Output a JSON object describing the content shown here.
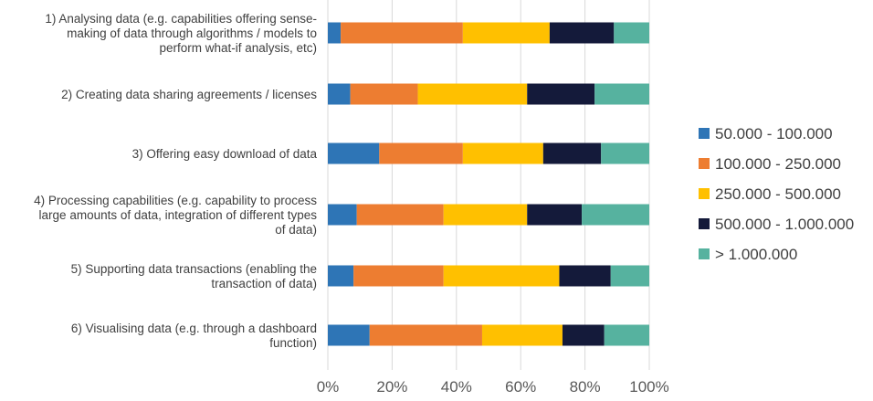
{
  "chart_data": {
    "type": "bar",
    "orientation": "horizontal",
    "stacked": "percent",
    "categories": [
      "1) Analysing data (e.g. capabilities offering sense-making of data through algorithms / models to perform what-if analysis, etc)",
      "2) Creating data sharing agreements / licenses",
      "3) Offering easy download of data",
      "4) Processing capabilities (e.g. capability to process large amounts of data, integration of different types of data)",
      "5) Supporting data transactions (enabling the transaction of data)",
      "6) Visualising data (e.g. through a dashboard function)"
    ],
    "category_lines": [
      [
        "1) Analysing data (e.g. capabilities offering sense-",
        "making of data through algorithms / models to",
        "perform what-if analysis, etc)"
      ],
      [
        "2) Creating data sharing agreements / licenses"
      ],
      [
        "3) Offering easy download of data"
      ],
      [
        "4) Processing capabilities (e.g. capability to process",
        "large amounts of data, integration of different types",
        "of data)"
      ],
      [
        "5) Supporting data transactions (enabling the",
        "transaction of data)"
      ],
      [
        "6) Visualising data (e.g. through a dashboard",
        "function)"
      ]
    ],
    "series": [
      {
        "name": "50.000 - 100.000",
        "color": "#2e75b6",
        "values": [
          4,
          7,
          16,
          9,
          8,
          13
        ]
      },
      {
        "name": "100.000 - 250.000",
        "color": "#ed7d31",
        "values": [
          38,
          21,
          26,
          27,
          28,
          35
        ]
      },
      {
        "name": "250.000 - 500.000",
        "color": "#ffc000",
        "values": [
          27,
          34,
          25,
          26,
          36,
          25
        ]
      },
      {
        "name": "500.000 - 1.000.000",
        "color": "#141a3a",
        "values": [
          20,
          21,
          18,
          17,
          16,
          13
        ]
      },
      {
        "name": "> 1.000.000",
        "color": "#56b29f",
        "values": [
          11,
          17,
          15,
          21,
          12,
          14
        ]
      }
    ],
    "xlim": [
      0,
      100
    ],
    "x_ticks": [
      "0%",
      "20%",
      "40%",
      "60%",
      "80%",
      "100%"
    ],
    "grid": "vertical",
    "legend_position": "right",
    "title": "",
    "xlabel": "",
    "ylabel": ""
  }
}
